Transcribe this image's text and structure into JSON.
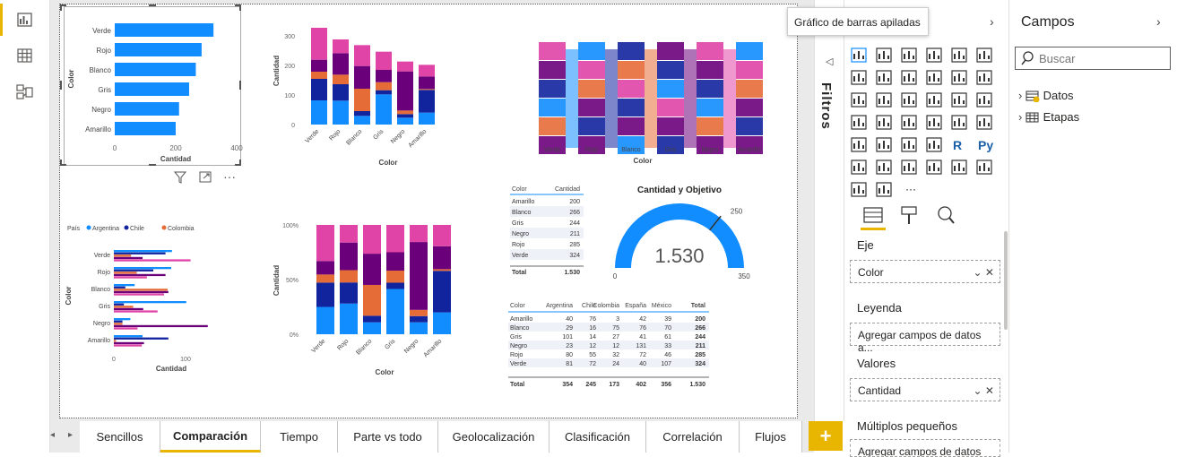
{
  "tooltip": "Gráfico de barras apiladas",
  "viz_pane": {
    "title": "Visualizaciones",
    "title_visible": "ones"
  },
  "filters_label": "Filtros",
  "fields_pane": {
    "title": "Campos",
    "search_placeholder": "Buscar",
    "items": [
      "Datos",
      "Etapas"
    ]
  },
  "wells": {
    "axis_label": "Eje",
    "axis_value": "Color",
    "legend_label": "Leyenda",
    "legend_placeholder": "Agregar campos de datos a...",
    "values_label": "Valores",
    "values_value": "Cantidad",
    "small_multiples_label": "Múltiplos pequeños",
    "small_multiples_placeholder": "Agregar campos de datos a..."
  },
  "tabs": [
    "Sencillos",
    "Comparación",
    "Tiempo",
    "Parte vs todo",
    "Geolocalización",
    "Clasificación",
    "Correlación",
    "Flujos"
  ],
  "active_tab": "Comparación",
  "visual_toolbar": {
    "more": "···"
  },
  "colors": {
    "blue": "#118dff",
    "navy": "#12239e",
    "orange": "#e66c37",
    "purple": "#6b007b",
    "magenta": "#e044a7",
    "accent": "#e8b500"
  },
  "chart_data": [
    {
      "type": "bar",
      "orientation": "horizontal",
      "categories": [
        "Verde",
        "Rojo",
        "Blanco",
        "Gris",
        "Negro",
        "Amarillo"
      ],
      "values": [
        324,
        285,
        266,
        244,
        211,
        200
      ],
      "xlabel": "Cantidad",
      "ylabel": "Color",
      "xticks": [
        "0",
        "200",
        "400"
      ],
      "xlim": [
        0,
        400
      ]
    },
    {
      "type": "bar",
      "stacked": true,
      "categories": [
        "Verde",
        "Rojo",
        "Blanco",
        "Gris",
        "Negro",
        "Amarillo"
      ],
      "series": [
        {
          "name": "Argentina",
          "values": [
            81,
            80,
            29,
            101,
            23,
            40
          ]
        },
        {
          "name": "Chile",
          "values": [
            72,
            55,
            16,
            14,
            12,
            76
          ]
        },
        {
          "name": "Colombia",
          "values": [
            24,
            32,
            75,
            27,
            12,
            3
          ]
        },
        {
          "name": "España",
          "values": [
            40,
            72,
            76,
            41,
            131,
            42
          ]
        },
        {
          "name": "México",
          "values": [
            107,
            46,
            70,
            61,
            33,
            39
          ]
        }
      ],
      "xlabel": "Color",
      "ylabel": "Cantidad",
      "yticks": [
        "0",
        "100",
        "200",
        "300"
      ],
      "ylim": [
        0,
        330
      ]
    },
    {
      "type": "area",
      "variant": "ribbon",
      "categories": [
        "Verde",
        "Rojo",
        "Blanco",
        "Gris",
        "Negro",
        "Amarillo"
      ],
      "xlabel": "Color"
    },
    {
      "type": "bar",
      "orientation": "horizontal",
      "clustered": true,
      "legend_title": "País",
      "legend": [
        "Argentina",
        "Chile",
        "Colombia"
      ],
      "categories": [
        "Verde",
        "Rojo",
        "Blanco",
        "Gris",
        "Negro",
        "Amarillo"
      ],
      "series": [
        {
          "name": "Argentina",
          "values": [
            81,
            80,
            29,
            101,
            23,
            40
          ]
        },
        {
          "name": "Chile",
          "values": [
            72,
            55,
            16,
            14,
            12,
            76
          ]
        },
        {
          "name": "Colombia",
          "values": [
            24,
            32,
            75,
            27,
            12,
            3
          ]
        },
        {
          "name": "España",
          "values": [
            40,
            72,
            76,
            41,
            131,
            42
          ]
        },
        {
          "name": "México",
          "values": [
            107,
            46,
            70,
            61,
            33,
            39
          ]
        }
      ],
      "xlabel": "Cantidad",
      "ylabel": "Color",
      "xticks": [
        "0",
        "100"
      ]
    },
    {
      "type": "bar",
      "stacked_percent": true,
      "categories": [
        "Verde",
        "Rojo",
        "Blanco",
        "Gris",
        "Negro",
        "Amarillo"
      ],
      "xlabel": "Color",
      "ylabel": "Cantidad",
      "yticks": [
        "0%",
        "50%",
        "100%"
      ]
    },
    {
      "type": "table",
      "headers": [
        "Color",
        "Cantidad"
      ],
      "rows": [
        [
          "Amarillo",
          "200"
        ],
        [
          "Blanco",
          "266"
        ],
        [
          "Gris",
          "244"
        ],
        [
          "Negro",
          "211"
        ],
        [
          "Rojo",
          "285"
        ],
        [
          "Verde",
          "324"
        ]
      ],
      "total": [
        "Total",
        "1.530"
      ]
    },
    {
      "type": "gauge",
      "title": "Cantidad y Objetivo",
      "value": "1.530",
      "min": "0",
      "max": "350",
      "target": "250",
      "fill_fraction": 1.0
    },
    {
      "type": "table",
      "headers": [
        "Color",
        "Argentina",
        "Chile",
        "Colombia",
        "España",
        "México",
        "Total"
      ],
      "rows": [
        [
          "Amarillo",
          "40",
          "76",
          "3",
          "42",
          "39",
          "200"
        ],
        [
          "Blanco",
          "29",
          "16",
          "75",
          "76",
          "70",
          "266"
        ],
        [
          "Gris",
          "101",
          "14",
          "27",
          "41",
          "61",
          "244"
        ],
        [
          "Negro",
          "23",
          "12",
          "12",
          "131",
          "33",
          "211"
        ],
        [
          "Rojo",
          "80",
          "55",
          "32",
          "72",
          "46",
          "285"
        ],
        [
          "Verde",
          "81",
          "72",
          "24",
          "40",
          "107",
          "324"
        ]
      ],
      "total": [
        "Total",
        "354",
        "245",
        "173",
        "402",
        "356",
        "1.530"
      ]
    }
  ]
}
